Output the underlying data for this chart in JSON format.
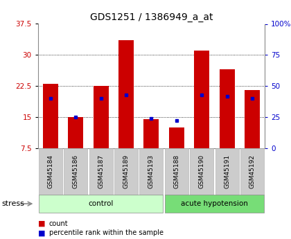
{
  "title": "GDS1251 / 1386949_a_at",
  "samples": [
    "GSM45184",
    "GSM45186",
    "GSM45187",
    "GSM45189",
    "GSM45193",
    "GSM45188",
    "GSM45190",
    "GSM45191",
    "GSM45192"
  ],
  "count_values": [
    23.0,
    15.0,
    22.5,
    33.5,
    14.5,
    12.5,
    31.0,
    26.5,
    21.5
  ],
  "percentile_values": [
    40,
    25,
    40,
    43,
    24,
    22,
    43,
    42,
    40
  ],
  "groups": [
    {
      "label": "control",
      "indices": [
        0,
        1,
        2,
        3,
        4
      ],
      "color": "#ccffcc"
    },
    {
      "label": "acute hypotension",
      "indices": [
        5,
        6,
        7,
        8
      ],
      "color": "#77dd77"
    }
  ],
  "group_label": "stress",
  "ylim_left": [
    7.5,
    37.5
  ],
  "ylim_right": [
    0,
    100
  ],
  "yticks_left": [
    7.5,
    15.0,
    22.5,
    30.0,
    37.5
  ],
  "yticks_right": [
    0,
    25,
    50,
    75,
    100
  ],
  "ytick_labels_left": [
    "7.5",
    "15",
    "22.5",
    "30",
    "37.5"
  ],
  "ytick_labels_right": [
    "0",
    "25",
    "50",
    "75",
    "100%"
  ],
  "bar_color": "#cc0000",
  "percentile_color": "#0000cc",
  "bar_width": 0.6,
  "title_fontsize": 10,
  "tick_label_fontsize": 7.5,
  "axis_label_color_left": "#cc0000",
  "axis_label_color_right": "#0000cc",
  "bg_label": "#cccccc",
  "legend_items": [
    {
      "label": "count",
      "color": "#cc0000"
    },
    {
      "label": "percentile rank within the sample",
      "color": "#0000cc"
    }
  ]
}
